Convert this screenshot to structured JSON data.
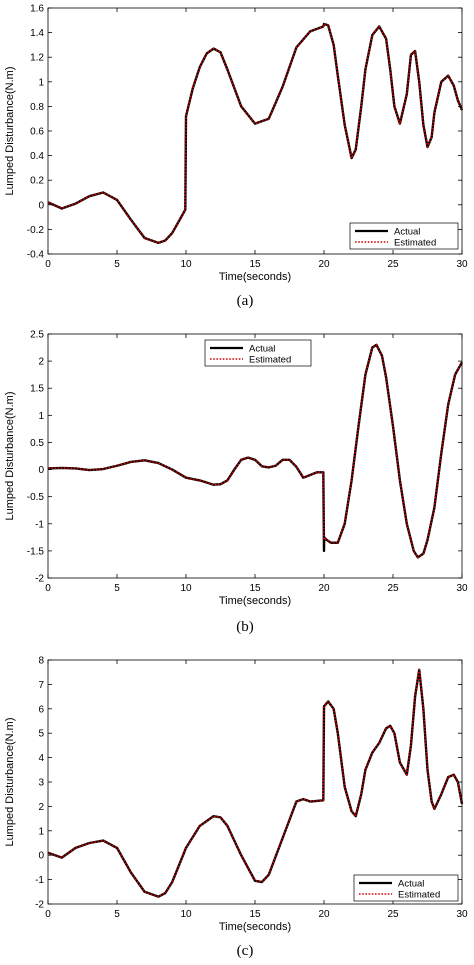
{
  "chart_data": [
    {
      "type": "line",
      "caption": "(a)",
      "xlabel": "Time(seconds)",
      "ylabel": "Lumped Disturbance(N.m)",
      "xlim": [
        0,
        30
      ],
      "ylim": [
        -0.4,
        1.6
      ],
      "xticks": [
        "0",
        "5",
        "10",
        "15",
        "20",
        "25",
        "30"
      ],
      "yticks": [
        "-0.4",
        "-0.2",
        "0",
        "0.2",
        "0.4",
        "0.6",
        "0.8",
        "1",
        "1.2",
        "1.4",
        "1.6"
      ],
      "legend_position": "bottom-right",
      "grid": false,
      "series": [
        {
          "name": "Actual",
          "color": "#000000",
          "style": "solid",
          "x": [
            0,
            1,
            2,
            3,
            4,
            5,
            6,
            7,
            8,
            8.5,
            9,
            9.5,
            9.95,
            10.0,
            10.5,
            11,
            11.5,
            12,
            12.5,
            13,
            14,
            15,
            16,
            17,
            18,
            19,
            19.95,
            20.0,
            20.3,
            20.7,
            21,
            21.5,
            22,
            22.3,
            22.7,
            23,
            23.5,
            24,
            24.5,
            24.8,
            25.1,
            25.5,
            26,
            26.3,
            26.6,
            26.9,
            27.2,
            27.5,
            27.8,
            28,
            28.5,
            29,
            29.4,
            29.7,
            30
          ],
          "y": [
            0.02,
            -0.03,
            0.01,
            0.07,
            0.1,
            0.04,
            -0.12,
            -0.27,
            -0.31,
            -0.29,
            -0.23,
            -0.13,
            -0.04,
            0.72,
            0.95,
            1.12,
            1.23,
            1.27,
            1.24,
            1.1,
            0.8,
            0.66,
            0.7,
            0.96,
            1.28,
            1.41,
            1.45,
            1.47,
            1.46,
            1.3,
            1.05,
            0.65,
            0.38,
            0.45,
            0.8,
            1.1,
            1.38,
            1.45,
            1.35,
            1.1,
            0.8,
            0.66,
            0.9,
            1.22,
            1.25,
            1.0,
            0.65,
            0.47,
            0.55,
            0.75,
            1.0,
            1.05,
            0.97,
            0.85,
            0.77
          ]
        },
        {
          "name": "Estimated",
          "color": "#d40000",
          "style": "dotted",
          "x": [
            0,
            1,
            2,
            3,
            4,
            5,
            6,
            7,
            8,
            8.5,
            9,
            9.5,
            9.95,
            10.0,
            10.5,
            11,
            11.5,
            12,
            12.5,
            13,
            14,
            15,
            16,
            17,
            18,
            19,
            19.95,
            20.0,
            20.3,
            20.7,
            21,
            21.5,
            22,
            22.3,
            22.7,
            23,
            23.5,
            24,
            24.5,
            24.8,
            25.1,
            25.5,
            26,
            26.3,
            26.6,
            26.9,
            27.2,
            27.5,
            27.8,
            28,
            28.5,
            29,
            29.4,
            29.7,
            30
          ],
          "y": [
            0.02,
            -0.03,
            0.01,
            0.07,
            0.1,
            0.04,
            -0.12,
            -0.27,
            -0.31,
            -0.29,
            -0.23,
            -0.13,
            -0.04,
            0.72,
            0.95,
            1.12,
            1.23,
            1.27,
            1.24,
            1.1,
            0.8,
            0.66,
            0.7,
            0.96,
            1.28,
            1.41,
            1.45,
            1.47,
            1.46,
            1.3,
            1.05,
            0.65,
            0.38,
            0.45,
            0.8,
            1.1,
            1.38,
            1.45,
            1.35,
            1.1,
            0.8,
            0.66,
            0.9,
            1.22,
            1.25,
            1.0,
            0.65,
            0.47,
            0.55,
            0.75,
            1.0,
            1.05,
            0.97,
            0.85,
            0.77
          ]
        }
      ]
    },
    {
      "type": "line",
      "caption": "(b)",
      "xlabel": "Time(seconds)",
      "ylabel": "Lumped Disturbance(N.m)",
      "xlim": [
        0,
        30
      ],
      "ylim": [
        -2,
        2.5
      ],
      "xticks": [
        "0",
        "5",
        "10",
        "15",
        "20",
        "25",
        "30"
      ],
      "yticks": [
        "-2",
        "-1.5",
        "-1",
        "-0.5",
        "0",
        "0.5",
        "1",
        "1.5",
        "2",
        "2.5"
      ],
      "legend_position": "top-center",
      "grid": false,
      "series": [
        {
          "name": "Actual",
          "color": "#000000",
          "style": "solid",
          "x": [
            0,
            1,
            2,
            3,
            4,
            5,
            6,
            7,
            8,
            9,
            10,
            11,
            12,
            12.5,
            13,
            13.5,
            14,
            14.5,
            15,
            15.5,
            16,
            16.5,
            17,
            17.5,
            18,
            18.5,
            19,
            19.5,
            19.95,
            20.0,
            20.01,
            20.2,
            20.5,
            21,
            21.5,
            22,
            22.5,
            23,
            23.5,
            23.8,
            24.2,
            24.5,
            25,
            25.5,
            26,
            26.5,
            26.8,
            27.2,
            27.5,
            28,
            28.5,
            29,
            29.5,
            30
          ],
          "y": [
            0.02,
            0.03,
            0.02,
            -0.01,
            0.01,
            0.07,
            0.14,
            0.17,
            0.12,
            0.0,
            -0.15,
            -0.2,
            -0.28,
            -0.27,
            -0.2,
            0.0,
            0.18,
            0.22,
            0.18,
            0.06,
            0.04,
            0.07,
            0.18,
            0.18,
            0.05,
            -0.15,
            -0.1,
            -0.05,
            -0.05,
            -1.5,
            -1.25,
            -1.3,
            -1.35,
            -1.35,
            -1.0,
            -0.2,
            0.8,
            1.75,
            2.25,
            2.3,
            2.1,
            1.7,
            0.8,
            -0.2,
            -1.0,
            -1.5,
            -1.62,
            -1.55,
            -1.3,
            -0.7,
            0.3,
            1.2,
            1.75,
            1.98
          ]
        },
        {
          "name": "Estimated",
          "color": "#d40000",
          "style": "dotted",
          "x": [
            0,
            1,
            2,
            3,
            4,
            5,
            6,
            7,
            8,
            9,
            10,
            11,
            12,
            12.5,
            13,
            13.5,
            14,
            14.5,
            15,
            15.5,
            16,
            16.5,
            17,
            17.5,
            18,
            18.5,
            19,
            19.5,
            19.95,
            20.0,
            20.01,
            20.2,
            20.5,
            21,
            21.5,
            22,
            22.5,
            23,
            23.5,
            23.8,
            24.2,
            24.5,
            25,
            25.5,
            26,
            26.5,
            26.8,
            27.2,
            27.5,
            28,
            28.5,
            29,
            29.5,
            30
          ],
          "y": [
            0.02,
            0.03,
            0.02,
            -0.01,
            0.01,
            0.07,
            0.14,
            0.17,
            0.12,
            0.0,
            -0.15,
            -0.2,
            -0.28,
            -0.27,
            -0.2,
            0.0,
            0.18,
            0.22,
            0.18,
            0.06,
            0.04,
            0.07,
            0.18,
            0.18,
            0.05,
            -0.15,
            -0.1,
            -0.05,
            -0.05,
            -1.3,
            -1.25,
            -1.3,
            -1.35,
            -1.35,
            -1.0,
            -0.2,
            0.8,
            1.75,
            2.25,
            2.3,
            2.1,
            1.7,
            0.8,
            -0.2,
            -1.0,
            -1.5,
            -1.62,
            -1.55,
            -1.3,
            -0.7,
            0.3,
            1.2,
            1.75,
            1.98
          ]
        }
      ]
    },
    {
      "type": "line",
      "caption": "(c)",
      "xlabel": "Time(seconds)",
      "ylabel": "Lumped Disturbance(N.m)",
      "xlim": [
        0,
        30
      ],
      "ylim": [
        -2,
        8
      ],
      "xticks": [
        "0",
        "5",
        "10",
        "15",
        "20",
        "25",
        "30"
      ],
      "yticks": [
        "-2",
        "-1",
        "0",
        "1",
        "2",
        "3",
        "4",
        "5",
        "6",
        "7",
        "8"
      ],
      "legend_position": "bottom-right",
      "grid": false,
      "series": [
        {
          "name": "Actual",
          "color": "#000000",
          "style": "solid",
          "x": [
            0,
            1,
            2,
            3,
            4,
            5,
            6,
            7,
            8,
            8.5,
            9,
            10,
            11,
            12,
            12.5,
            13,
            14,
            15,
            15.5,
            16,
            17,
            18,
            18.5,
            19,
            19.95,
            20.0,
            20.3,
            20.7,
            21,
            21.5,
            22,
            22.3,
            22.7,
            23,
            23.5,
            24,
            24.5,
            24.8,
            25.1,
            25.5,
            26,
            26.3,
            26.6,
            26.9,
            27.2,
            27.5,
            27.8,
            28,
            28.5,
            29,
            29.4,
            29.7,
            30
          ],
          "y": [
            0.1,
            -0.1,
            0.3,
            0.5,
            0.6,
            0.3,
            -0.7,
            -1.5,
            -1.7,
            -1.55,
            -1.1,
            0.3,
            1.2,
            1.6,
            1.55,
            1.2,
            0.0,
            -1.05,
            -1.1,
            -0.8,
            0.7,
            2.2,
            2.3,
            2.2,
            2.25,
            6.1,
            6.3,
            6.0,
            5.0,
            2.8,
            1.8,
            1.6,
            2.5,
            3.5,
            4.2,
            4.6,
            5.2,
            5.3,
            5.0,
            3.8,
            3.3,
            4.5,
            6.5,
            7.6,
            6.0,
            3.5,
            2.2,
            1.9,
            2.5,
            3.2,
            3.3,
            3.0,
            2.1
          ]
        },
        {
          "name": "Estimated",
          "color": "#d40000",
          "style": "dotted",
          "x": [
            0,
            1,
            2,
            3,
            4,
            5,
            6,
            7,
            8,
            8.5,
            9,
            10,
            11,
            12,
            12.5,
            13,
            14,
            15,
            15.5,
            16,
            17,
            18,
            18.5,
            19,
            19.95,
            20.0,
            20.3,
            20.7,
            21,
            21.5,
            22,
            22.3,
            22.7,
            23,
            23.5,
            24,
            24.5,
            24.8,
            25.1,
            25.5,
            26,
            26.3,
            26.6,
            26.9,
            27.2,
            27.5,
            27.8,
            28,
            28.5,
            29,
            29.4,
            29.7,
            30
          ],
          "y": [
            0.1,
            -0.1,
            0.3,
            0.5,
            0.6,
            0.3,
            -0.7,
            -1.5,
            -1.7,
            -1.55,
            -1.1,
            0.3,
            1.2,
            1.6,
            1.55,
            1.2,
            0.0,
            -1.05,
            -1.1,
            -0.8,
            0.7,
            2.2,
            2.3,
            2.2,
            2.25,
            6.1,
            6.3,
            6.0,
            5.0,
            2.8,
            1.8,
            1.6,
            2.5,
            3.5,
            4.2,
            4.6,
            5.2,
            5.3,
            5.0,
            3.8,
            3.3,
            4.5,
            6.5,
            7.6,
            6.0,
            3.5,
            2.2,
            1.9,
            2.5,
            3.2,
            3.3,
            3.0,
            2.1
          ]
        }
      ]
    }
  ]
}
